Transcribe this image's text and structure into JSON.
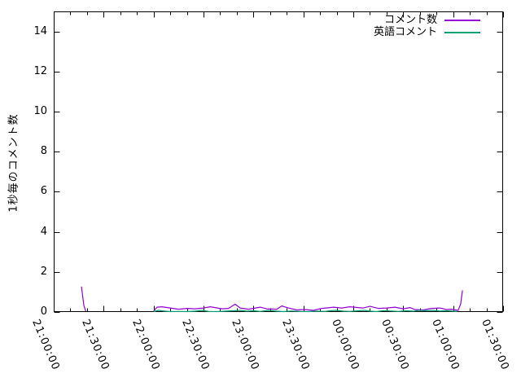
{
  "page": {
    "background": "#ffffff"
  },
  "chart_data": {
    "type": "line",
    "title": "",
    "xlabel": "",
    "ylabel": "1秒毎のコメント数",
    "grid": false,
    "x_axis": {
      "tick_labels": [
        "21:00:00",
        "21:30:00",
        "22:00:00",
        "22:30:00",
        "23:00:00",
        "23:30:00",
        "00:00:00",
        "00:30:00",
        "01:00:00",
        "01:30:00"
      ],
      "tick_minutes": [
        0,
        30,
        60,
        90,
        120,
        150,
        180,
        210,
        240,
        270
      ],
      "minor_tick_step_minutes": 10,
      "range_minutes": [
        0,
        270
      ],
      "labels_rotated": true
    },
    "y_axis": {
      "ticks": [
        0,
        2,
        4,
        6,
        8,
        10,
        12,
        14
      ],
      "range": [
        0,
        15
      ]
    },
    "legend": {
      "position": "top-right",
      "entries": [
        {
          "label": "コメント数",
          "color": "#9400d3"
        },
        {
          "label": "英語コメント",
          "color": "#009e73"
        }
      ]
    },
    "series": [
      {
        "name": "コメント数",
        "color": "#9400d3",
        "segments": [
          [
            [
              16.7,
              1.27
            ],
            [
              18.1,
              0.33
            ],
            [
              19.2,
              0.04
            ]
          ],
          [
            [
              60,
              0.04
            ],
            [
              62,
              0.24
            ],
            [
              65,
              0.26
            ],
            [
              70,
              0.2
            ],
            [
              75,
              0.14
            ],
            [
              80,
              0.18
            ],
            [
              85,
              0.16
            ],
            [
              90,
              0.2
            ],
            [
              94,
              0.26
            ],
            [
              97,
              0.22
            ],
            [
              101,
              0.16
            ],
            [
              105,
              0.18
            ],
            [
              109,
              0.39
            ],
            [
              112,
              0.2
            ],
            [
              117,
              0.14
            ],
            [
              120,
              0.18
            ],
            [
              124,
              0.24
            ],
            [
              128,
              0.16
            ],
            [
              134,
              0.14
            ],
            [
              137,
              0.3
            ],
            [
              141,
              0.2
            ],
            [
              146,
              0.1
            ],
            [
              151,
              0.12
            ],
            [
              156,
              0.08
            ],
            [
              161,
              0.18
            ],
            [
              166,
              0.22
            ],
            [
              168,
              0.24
            ],
            [
              173,
              0.2
            ],
            [
              178,
              0.26
            ],
            [
              183,
              0.22
            ],
            [
              186,
              0.2
            ],
            [
              190,
              0.28
            ],
            [
              195,
              0.18
            ],
            [
              200,
              0.2
            ],
            [
              205,
              0.24
            ],
            [
              210,
              0.16
            ],
            [
              214,
              0.22
            ],
            [
              217,
              0.12
            ],
            [
              222,
              0.1
            ],
            [
              227,
              0.18
            ],
            [
              232,
              0.2
            ],
            [
              236,
              0.12
            ],
            [
              239,
              0.14
            ],
            [
              243,
              0.08
            ],
            [
              244.5,
              0.4
            ],
            [
              245.6,
              1.08
            ]
          ]
        ]
      },
      {
        "name": "英語コメント",
        "color": "#009e73",
        "segments": [
          [
            [
              60,
              0.02
            ],
            [
              63,
              0.08
            ],
            [
              66,
              0.05
            ],
            [
              70,
              0.02
            ],
            [
              75,
              0.03
            ],
            [
              80,
              0.02
            ],
            [
              85,
              0.04
            ],
            [
              89,
              0.08
            ],
            [
              93,
              0.03
            ],
            [
              98,
              0.02
            ],
            [
              103,
              0.04
            ],
            [
              108,
              0.06
            ],
            [
              112,
              0.08
            ],
            [
              116,
              0.04
            ],
            [
              120,
              0.06
            ],
            [
              124,
              0.03
            ],
            [
              129,
              0.08
            ],
            [
              134,
              0.04
            ],
            [
              138,
              0.02
            ],
            [
              143,
              0.05
            ],
            [
              148,
              0.03
            ],
            [
              153,
              0.02
            ],
            [
              158,
              0.04
            ],
            [
              163,
              0.03
            ],
            [
              166,
              0.06
            ],
            [
              170,
              0.08
            ],
            [
              174,
              0.04
            ],
            [
              178,
              0.03
            ],
            [
              183,
              0.06
            ],
            [
              187,
              0.08
            ],
            [
              190,
              0.04
            ],
            [
              194,
              0.02
            ],
            [
              198,
              0.07
            ],
            [
              203,
              0.05
            ],
            [
              207,
              0.03
            ],
            [
              212,
              0.06
            ],
            [
              216,
              0.04
            ],
            [
              220,
              0.08
            ],
            [
              224,
              0.06
            ],
            [
              228,
              0.08
            ],
            [
              232,
              0.05
            ],
            [
              236,
              0.06
            ],
            [
              240,
              0.04
            ],
            [
              242.5,
              0.03
            ]
          ]
        ]
      }
    ]
  }
}
